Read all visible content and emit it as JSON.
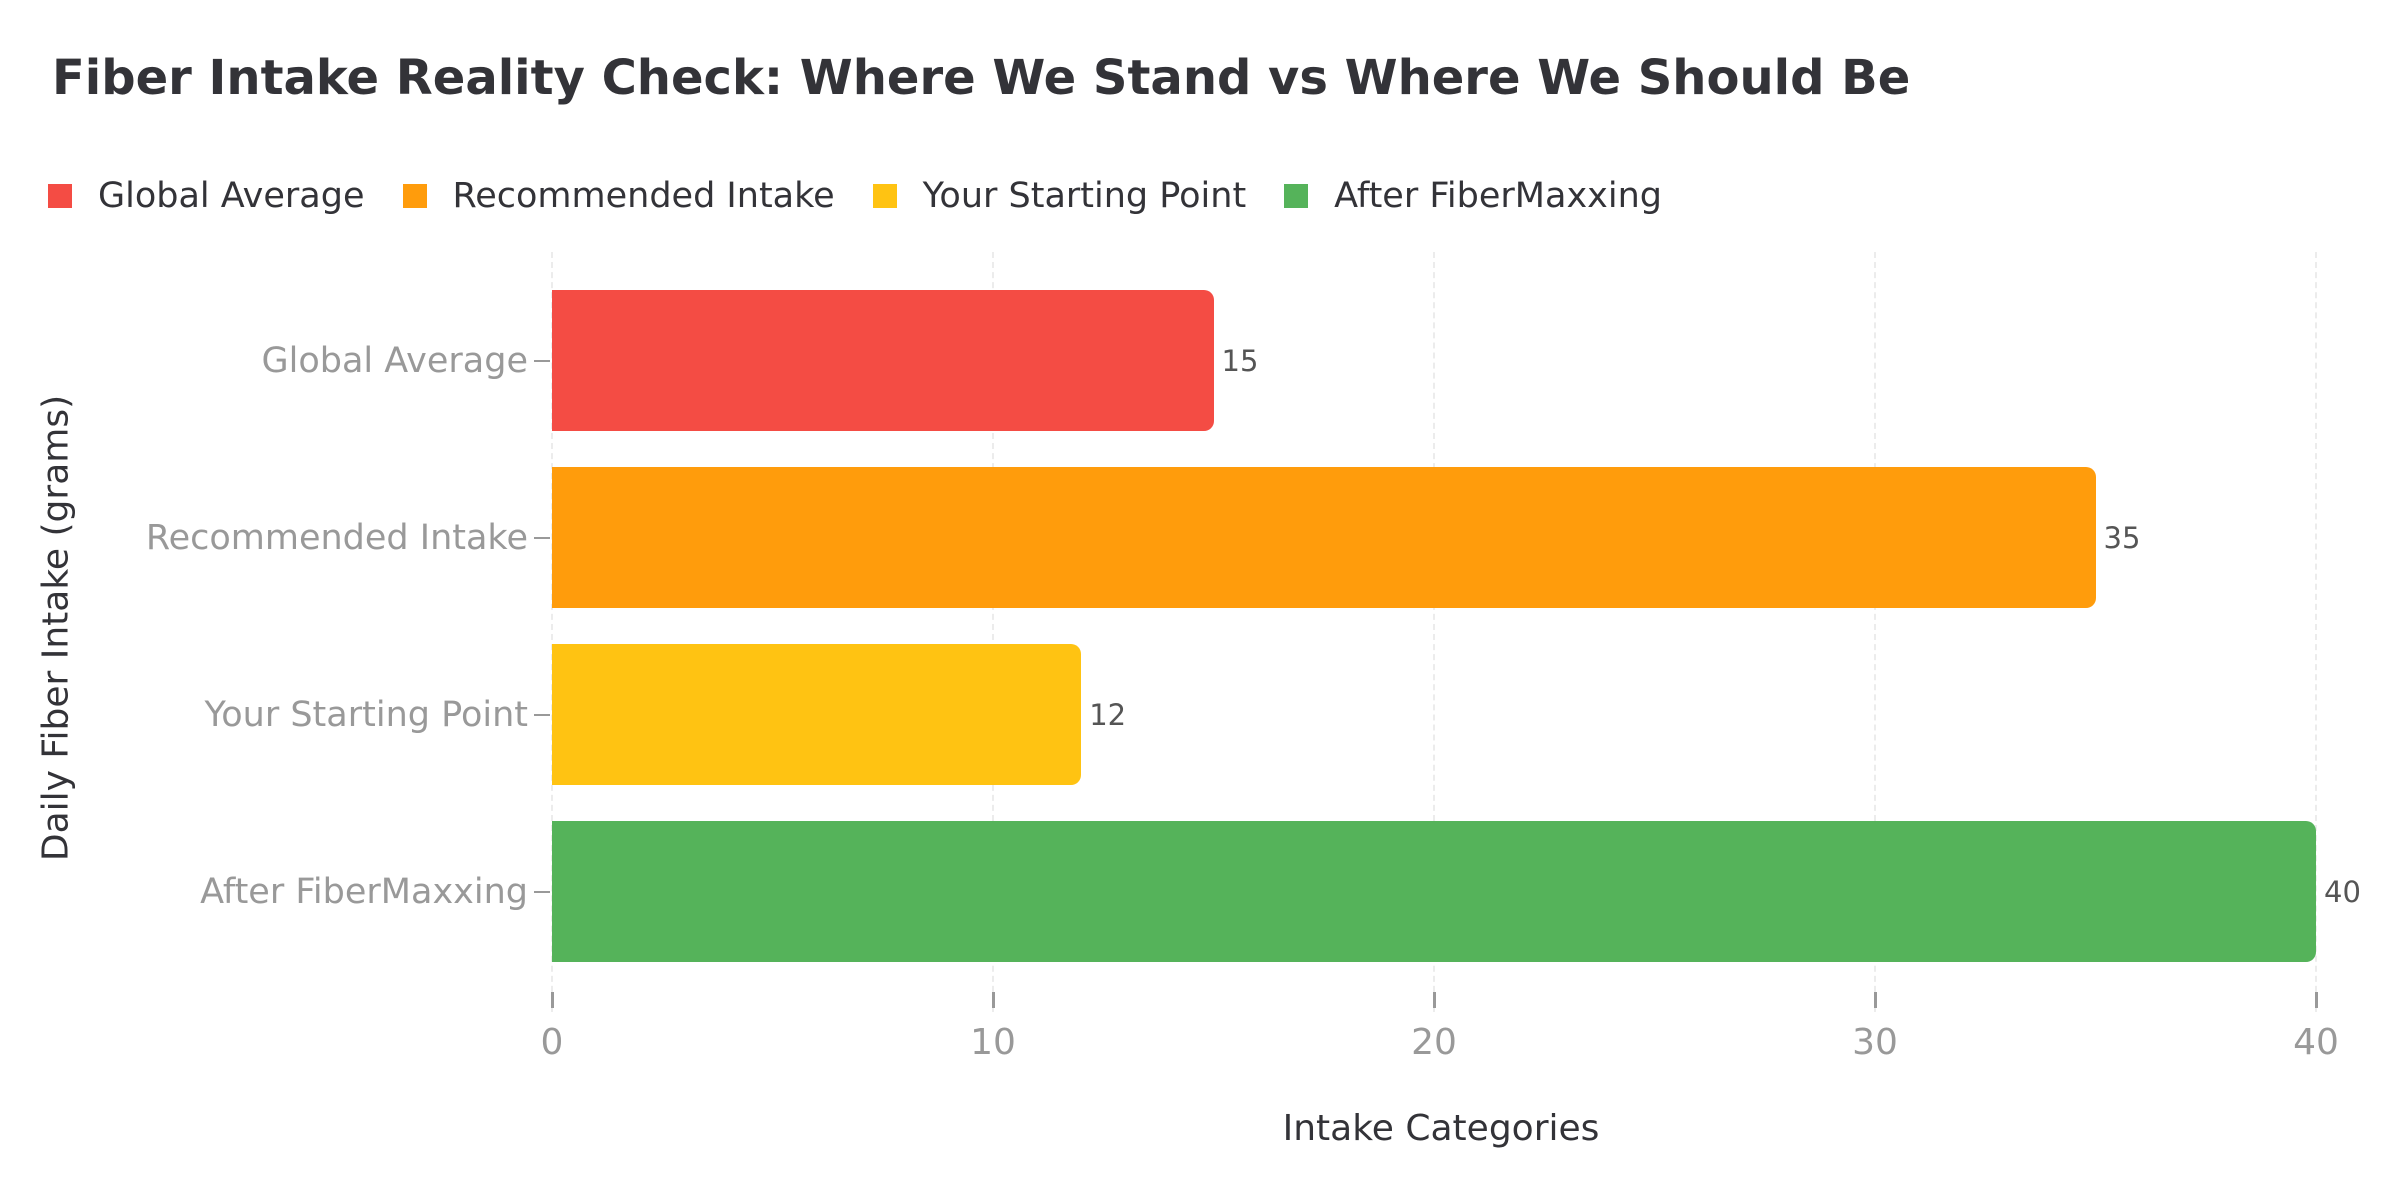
{
  "chart_data": {
    "type": "bar",
    "orientation": "horizontal",
    "title": "Fiber Intake Reality Check: Where We Stand vs Where We Should Be",
    "categories": [
      "Global Average",
      "Recommended Intake",
      "Your Starting Point",
      "After FiberMaxxing"
    ],
    "values": [
      15,
      35,
      12,
      40
    ],
    "value_labels": [
      "15",
      "35",
      "12",
      "40"
    ],
    "colors": [
      "#F44C44",
      "#FF9C0C",
      "#FFC312",
      "#55B35A"
    ],
    "xlabel": "Intake Categories",
    "ylabel": "Daily Fiber Intake (grams)",
    "xlim": [
      0,
      40
    ],
    "xticks": [
      "0",
      "10",
      "20",
      "30",
      "40"
    ],
    "grid": true,
    "legend_position": "top-left",
    "legend": [
      "Global Average",
      "Recommended Intake",
      "Your Starting Point",
      "After FiberMaxxing"
    ]
  },
  "header": {
    "title": "Fiber Intake Reality Check: Where We Stand vs Where We Should Be"
  },
  "legend": {
    "items": [
      {
        "label": "Global Average",
        "color": "#F44C44"
      },
      {
        "label": "Recommended Intake",
        "color": "#FF9C0C"
      },
      {
        "label": "Your Starting Point",
        "color": "#FFC312"
      },
      {
        "label": "After FiberMaxxing",
        "color": "#55B35A"
      }
    ]
  },
  "axes": {
    "xlabel": "Intake Categories",
    "ylabel": "Daily Fiber Intake (grams)",
    "xticks": [
      "0",
      "10",
      "20",
      "30",
      "40"
    ],
    "yticks": [
      "Global Average",
      "Recommended Intake",
      "Your Starting Point",
      "After FiberMaxxing"
    ]
  },
  "bars": [
    {
      "label": "Global Average",
      "value": 15,
      "value_label": "15",
      "color": "#F44C44"
    },
    {
      "label": "Recommended Intake",
      "value": 35,
      "value_label": "35",
      "color": "#FF9C0C"
    },
    {
      "label": "Your Starting Point",
      "value": 12,
      "value_label": "12",
      "color": "#FFC312"
    },
    {
      "label": "After FiberMaxxing",
      "value": 40,
      "value_label": "40",
      "color": "#55B35A"
    }
  ]
}
